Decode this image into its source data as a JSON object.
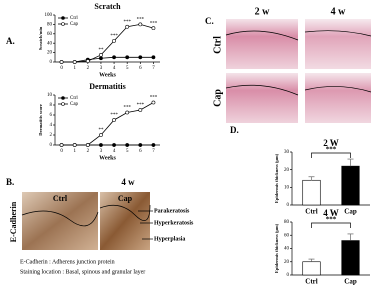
{
  "chart_data": [
    {
      "type": "line",
      "title": "Scratch",
      "x_label": "Weeks",
      "y_label": "Scratch/min",
      "x": [
        0,
        1,
        2,
        3,
        4,
        5,
        6,
        7
      ],
      "xlim": [
        -0.5,
        7.5
      ],
      "xticks": [
        0,
        1,
        2,
        3,
        4,
        5,
        6,
        7
      ],
      "ylim": [
        0,
        100
      ],
      "yticks": [
        0,
        20,
        40,
        60,
        80,
        100
      ],
      "legend": "upper left",
      "series": [
        {
          "name": "Ctrl",
          "color": "#000000",
          "marker": "filled",
          "values": [
            0,
            0,
            5,
            8,
            10,
            10,
            10,
            10
          ]
        },
        {
          "name": "Cap",
          "color": "#000000",
          "marker": "open",
          "values": [
            0,
            0,
            2,
            15,
            45,
            75,
            80,
            72
          ]
        }
      ],
      "annotations": [
        {
          "x": 3,
          "text": "**"
        },
        {
          "x": 4,
          "text": "***"
        },
        {
          "x": 5,
          "text": "***"
        },
        {
          "x": 6,
          "text": "***"
        },
        {
          "x": 7,
          "text": "***"
        }
      ]
    },
    {
      "type": "line",
      "title": "Dermatitis",
      "x_label": "Weeks",
      "y_label": "Dermatitis score",
      "x": [
        0,
        1,
        2,
        3,
        4,
        5,
        6,
        7
      ],
      "xlim": [
        -0.5,
        7.5
      ],
      "xticks": [
        0,
        1,
        2,
        3,
        4,
        5,
        6,
        7
      ],
      "ylim": [
        0,
        10
      ],
      "yticks": [
        0,
        2,
        4,
        6,
        8,
        10
      ],
      "legend": "upper left",
      "series": [
        {
          "name": "Ctrl",
          "color": "#000000",
          "marker": "filled",
          "values": [
            0,
            0,
            0,
            0,
            0,
            0,
            0,
            0
          ]
        },
        {
          "name": "Cap",
          "color": "#000000",
          "marker": "open",
          "values": [
            0,
            0,
            0,
            2,
            5,
            6.5,
            7,
            8.5
          ]
        }
      ],
      "annotations": [
        {
          "x": 3,
          "text": "**"
        },
        {
          "x": 4,
          "text": "***"
        },
        {
          "x": 5,
          "text": "***"
        },
        {
          "x": 6,
          "text": "***"
        },
        {
          "x": 7,
          "text": "***"
        }
      ]
    },
    {
      "type": "bar",
      "title": "2 W",
      "y_label": "Epidermis thickness (μm)",
      "categories": [
        "Ctrl",
        "Cap"
      ],
      "values": [
        14,
        22
      ],
      "errors": [
        2,
        4
      ],
      "colors": [
        "#ffffff",
        "#000000"
      ],
      "ylim": [
        0,
        30
      ],
      "yticks": [
        0,
        10,
        20,
        30
      ],
      "annotation": "***"
    },
    {
      "type": "bar",
      "title": "4 W",
      "y_label": "Epidermis thickness (μm)",
      "categories": [
        "Ctrl",
        "Cap"
      ],
      "values": [
        20,
        52
      ],
      "errors": [
        4,
        10
      ],
      "colors": [
        "#ffffff",
        "#000000"
      ],
      "ylim": [
        0,
        80
      ],
      "yticks": [
        0,
        20,
        40,
        60,
        80
      ],
      "annotation": "***"
    }
  ],
  "panel_labels": [
    "A.",
    "B.",
    "C.",
    "D."
  ],
  "panel_b": {
    "title": "4 w",
    "columns": [
      "Ctrl",
      "Cap"
    ],
    "stain": "E-Cadherin",
    "callouts": [
      "Parakeratosis",
      "Hyperkeratosis",
      "Hyperplasia"
    ],
    "notes": [
      "E-Cadherin : Adherens junction protein",
      "Staining location : Basal, spinous and granular layer"
    ]
  },
  "panel_c": {
    "columns": [
      "2 w",
      "4 w"
    ],
    "rows": [
      "Ctrl",
      "Cap"
    ]
  }
}
